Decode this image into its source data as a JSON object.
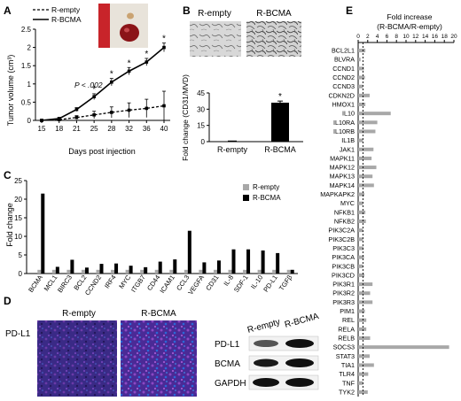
{
  "panels": {
    "A": "A",
    "B": "B",
    "C": "C",
    "D": "D",
    "E": "E"
  },
  "chart_data": [
    {
      "panel": "A",
      "type": "line",
      "ylabel": "Tumor volume (cm³)",
      "xlabel": "Days post injection",
      "x": [
        15,
        18,
        21,
        25,
        28,
        32,
        36,
        40
      ],
      "xticks": [
        "15",
        "18",
        "21",
        "25",
        "28",
        "32",
        "36",
        "40"
      ],
      "ylim": [
        0,
        2.5
      ],
      "yticks": [
        "0",
        "0.5",
        "1",
        "1.5",
        "2",
        "2.5"
      ],
      "ytick_values": [
        0,
        0.5,
        1,
        1.5,
        2,
        2.5
      ],
      "series": [
        {
          "name": "R-empty",
          "style": "dashed",
          "values": [
            0,
            0.02,
            0.08,
            0.15,
            0.22,
            0.28,
            0.33,
            0.4
          ],
          "err": [
            0,
            0.02,
            0.05,
            0.1,
            0.15,
            0.2,
            0.25,
            0.4
          ]
        },
        {
          "name": "R-BCMA",
          "style": "solid",
          "values": [
            0,
            0.05,
            0.3,
            0.65,
            1.05,
            1.35,
            1.6,
            2.0
          ],
          "err": [
            0,
            0.03,
            0.05,
            0.08,
            0.1,
            0.1,
            0.1,
            0.12
          ]
        }
      ],
      "star_x": [
        25,
        28,
        32,
        36,
        40
      ],
      "star_text": "*",
      "annotation": "P < .002"
    },
    {
      "panel": "B",
      "type": "bar",
      "ylabel": "Fold change (CD31/MVD)",
      "categories": [
        "R-empty",
        "R-BCMA"
      ],
      "values": [
        1,
        36
      ],
      "err": [
        0,
        1.5
      ],
      "ylim": [
        0,
        45
      ],
      "yticks": [
        "0",
        "15",
        "30",
        "45"
      ],
      "ytick_values": [
        0,
        15,
        30,
        45
      ],
      "image_labels": [
        "R-empty",
        "R-BCMA"
      ],
      "star_text": "*"
    },
    {
      "panel": "C",
      "type": "bar",
      "ylabel": "Fold change",
      "categories": [
        "BCMA",
        "MCL1",
        "BIRC3",
        "BCL2",
        "CCND2",
        "IRF4",
        "MYC",
        "ITGB7",
        "CD44",
        "ICAM1",
        "CCL3",
        "VEGFA",
        "CD31",
        "IL-8",
        "SDF-1",
        "IL-10",
        "PD-L1",
        "TGFβ"
      ],
      "series": [
        {
          "name": "R-empty",
          "color": "#a8a8a8",
          "values": [
            1,
            1,
            1,
            1,
            1,
            1,
            1,
            1,
            1,
            1,
            1,
            1,
            1,
            1,
            1,
            1,
            1,
            1
          ]
        },
        {
          "name": "R-BCMA",
          "color": "#000000",
          "values": [
            21.5,
            1.8,
            3.7,
            1.6,
            2.6,
            2.7,
            2.1,
            1.7,
            3.2,
            3.8,
            11.5,
            3.0,
            3.5,
            6.5,
            6.5,
            6.2,
            5.5,
            1.0
          ]
        }
      ],
      "ylim": [
        0,
        25
      ],
      "yticks": [
        "0",
        "5",
        "10",
        "15",
        "20",
        "25"
      ],
      "ytick_values": [
        0,
        5,
        10,
        15,
        20,
        25
      ],
      "legend": "top-right"
    },
    {
      "panel": "E",
      "type": "bar",
      "orientation": "horizontal",
      "title": "Fold increase\n(R-BCMA/R-empty)",
      "categories": [
        "BCL2L1",
        "BLVRA",
        "CCND1",
        "CCND2",
        "CCND3",
        "CDKN2D",
        "HMOX1",
        "IL10",
        "IL10RA",
        "IL10RB",
        "IL1B",
        "JAK1",
        "MAPK11",
        "MAPK12",
        "MAPK13",
        "MAPK14",
        "MAPKAPK2",
        "MYC",
        "NFKB1",
        "NFKB2",
        "PIK3C2A",
        "PIK3C2B",
        "PIK3C3",
        "PIK3CA",
        "PIK3CB",
        "PIK3CD",
        "PIK3R1",
        "PIK3R2",
        "PIK3R3",
        "PIM1",
        "REL",
        "RELA",
        "RELB",
        "SOCS3",
        "STAT3",
        "TIA1",
        "TLR4",
        "TNF",
        "TYK2"
      ],
      "values": [
        1.5,
        0.5,
        1.2,
        1.4,
        1.0,
        2.4,
        1.5,
        6.8,
        4.0,
        3.6,
        1.0,
        3.2,
        2.8,
        3.8,
        3.0,
        3.3,
        1.3,
        1.0,
        1.5,
        1.6,
        1.0,
        1.0,
        1.1,
        1.2,
        1.0,
        1.3,
        3.0,
        2.5,
        3.0,
        1.4,
        1.7,
        1.7,
        2.5,
        19.0,
        2.4,
        3.3,
        2.1,
        1.0,
        2.0
      ],
      "xlim": [
        0,
        20
      ],
      "xticks": [
        "0",
        "2",
        "4",
        "6",
        "8",
        "10",
        "12",
        "14",
        "16",
        "18",
        "20"
      ],
      "xtick_values": [
        0,
        2,
        4,
        6,
        8,
        10,
        12,
        14,
        16,
        18,
        20
      ],
      "reference_line": 1
    }
  ],
  "panel_D": {
    "row_label": "PD-L1",
    "image_labels": [
      "R-empty",
      "R-BCMA"
    ],
    "blot_headers": [
      "R-empty",
      "R-BCMA"
    ],
    "blot_rows": [
      "PD-L1",
      "BCMA",
      "GAPDH"
    ]
  }
}
